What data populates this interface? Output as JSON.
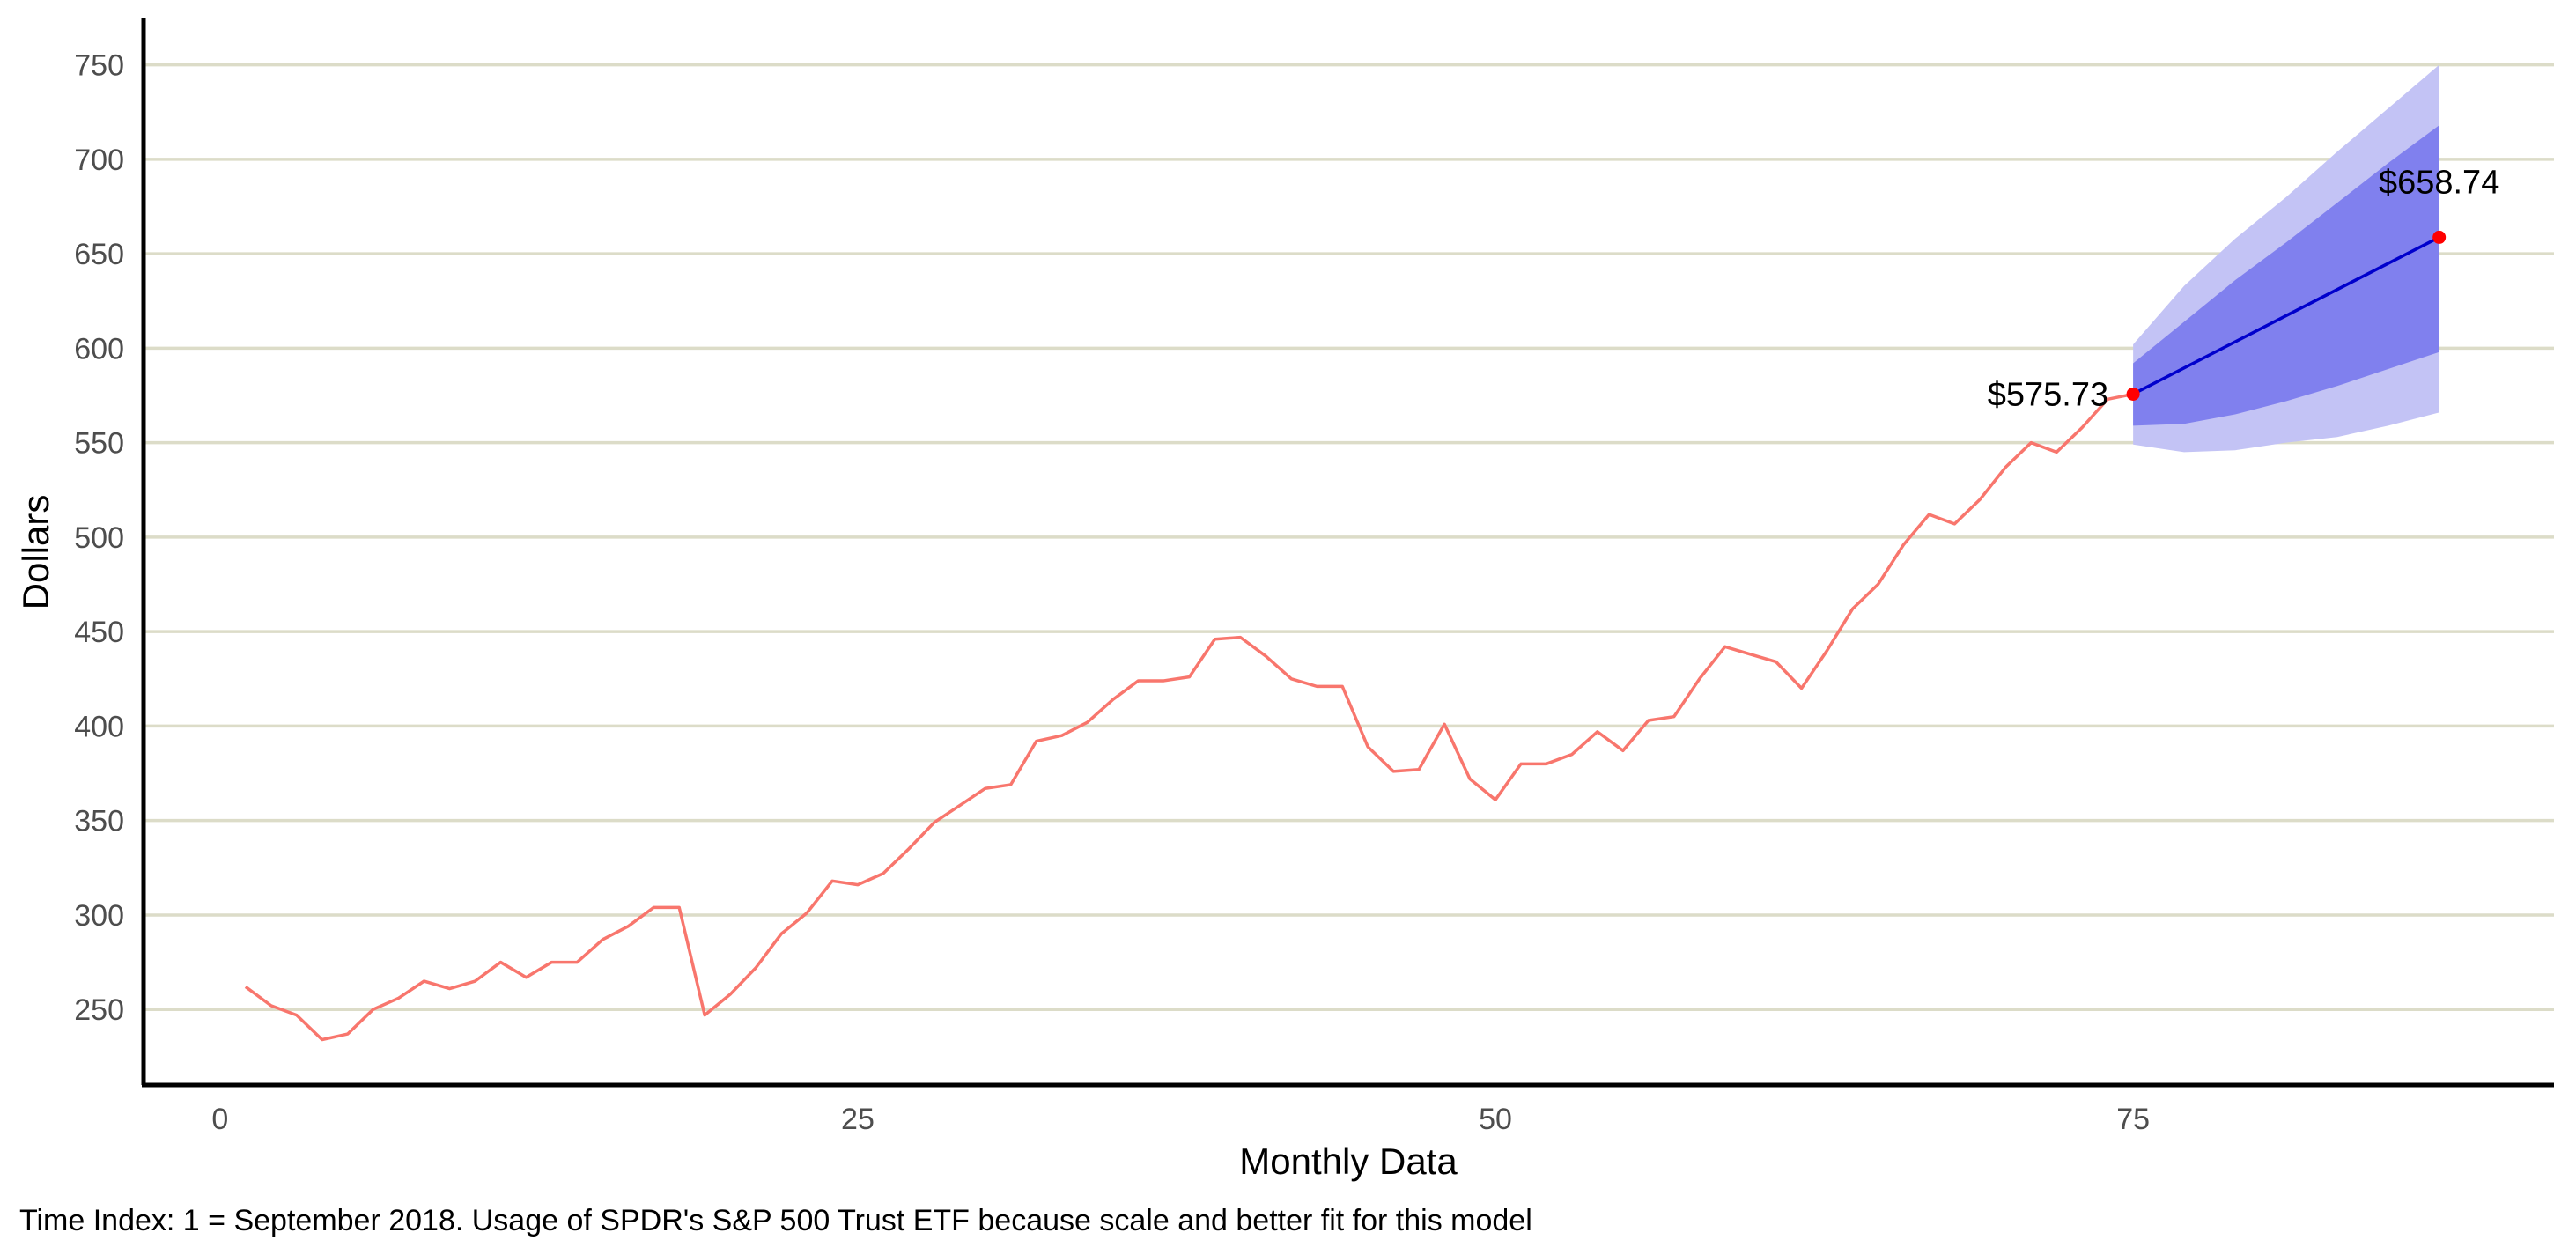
{
  "chart_data": {
    "type": "line",
    "xlabel": "Monthly Data",
    "ylabel": "Dollars",
    "caption": "Time Index: 1 = September 2018. Usage of SPDR's S&P 500 Trust ETF because scale and better fit for this model",
    "xlim": [
      -3,
      91.5
    ],
    "ylim": [
      210,
      775
    ],
    "x_ticks": [
      0,
      25,
      50,
      75
    ],
    "y_ticks": [
      250,
      300,
      350,
      400,
      450,
      500,
      550,
      600,
      650,
      700,
      750
    ],
    "grid": "horizontal",
    "colors": {
      "history": "#f8766d",
      "forecast_line": "#0000cc",
      "band_95": "#c3c3f5",
      "band_80": "#8080ee",
      "endpoint": "#ff0000",
      "grid": "#dcdcc8"
    },
    "series": [
      {
        "x": [
          1,
          2,
          3,
          4,
          5,
          6,
          7,
          8,
          9,
          10,
          11,
          12,
          13,
          14,
          15,
          16,
          17,
          18,
          19,
          20,
          21,
          22,
          23,
          24,
          25,
          26,
          27,
          28,
          29,
          30,
          31,
          32,
          33,
          34,
          35,
          36,
          37,
          38,
          39,
          40,
          41,
          42,
          43,
          44,
          45,
          46,
          47,
          48,
          49,
          50,
          51,
          52,
          53,
          54,
          55,
          56,
          57,
          58,
          59,
          60,
          61,
          62,
          63,
          64,
          65,
          66,
          67,
          68,
          69,
          70,
          71,
          72,
          73,
          74,
          75
        ],
        "values": [
          262,
          252,
          247,
          234,
          237,
          250,
          256,
          265,
          261,
          265,
          275,
          267,
          275,
          275,
          287,
          294,
          304,
          304,
          247,
          258,
          272,
          290,
          301,
          318,
          316,
          322,
          335,
          349,
          358,
          367,
          369,
          392,
          395,
          402,
          414,
          424,
          424,
          426,
          446,
          447,
          437,
          425,
          421,
          421,
          389,
          376,
          377,
          401,
          372,
          361,
          380,
          380,
          385,
          397,
          387,
          403,
          405,
          425,
          442,
          438,
          434,
          420,
          440,
          462,
          475,
          496,
          512,
          507,
          520,
          537,
          550,
          545,
          558,
          573,
          575.73
        ]
      },
      {
        "x": [
          75,
          87
        ],
        "values": [
          575.73,
          658.74
        ]
      }
    ],
    "bands": [
      {
        "level": "95",
        "x": [
          75,
          77,
          79,
          81,
          83,
          85,
          87
        ],
        "upper": [
          602,
          633,
          658,
          680,
          704,
          727,
          750
        ],
        "lower": [
          549,
          545,
          546,
          550,
          553,
          559,
          566
        ]
      },
      {
        "level": "80",
        "x": [
          75,
          77,
          79,
          81,
          83,
          85,
          87
        ],
        "upper": [
          592,
          614,
          636,
          656,
          677,
          698,
          718
        ],
        "lower": [
          559,
          560,
          565,
          572,
          580,
          589,
          598
        ]
      }
    ],
    "annotations": [
      {
        "x": 75,
        "y": 575.73,
        "text": "$575.73",
        "anchor": "end"
      },
      {
        "x": 87,
        "y": 658.74,
        "text": "$658.74",
        "anchor": "middle"
      }
    ]
  }
}
